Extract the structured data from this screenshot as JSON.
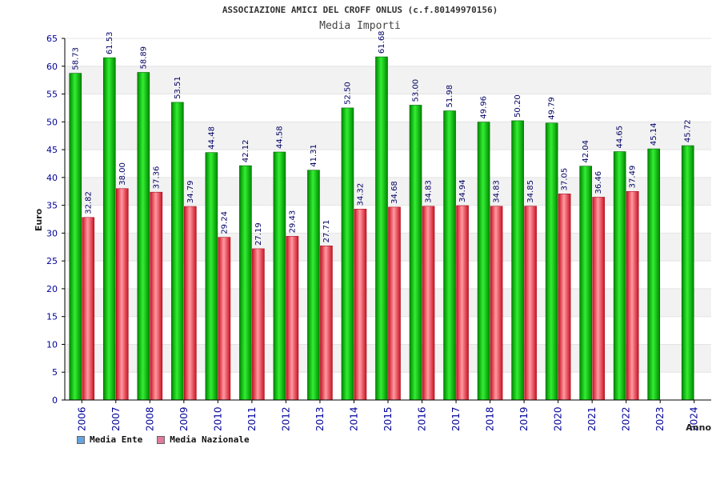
{
  "colors": {
    "ente_dark": "#008800",
    "ente_light": "#33ee33",
    "naz_dark": "#cc1122",
    "naz_light": "#ff9aa2",
    "axis_text": "#000099",
    "value_text": "#000066",
    "band": "#f2f2f2",
    "legend_ente": "#66a3e0",
    "legend_naz": "#e07aa0"
  },
  "chart_data": {
    "type": "bar",
    "title": "ASSOCIAZIONE AMICI DEL CROFF ONLUS (c.f.80149970156)",
    "subtitle": "Media Importi",
    "ylabel": "Euro",
    "xlabel": "Anno",
    "ylim": [
      0,
      65
    ],
    "yticks": [
      0,
      5,
      10,
      15,
      20,
      25,
      30,
      35,
      40,
      45,
      50,
      55,
      60,
      65
    ],
    "categories": [
      "2006",
      "2007",
      "2008",
      "2009",
      "2010",
      "2011",
      "2012",
      "2013",
      "2014",
      "2015",
      "2016",
      "2017",
      "2018",
      "2019",
      "2020",
      "2021",
      "2022",
      "2023",
      "2024"
    ],
    "series": [
      {
        "name": "Media Ente",
        "values": [
          58.73,
          61.53,
          58.89,
          53.51,
          44.48,
          42.12,
          44.58,
          41.31,
          52.5,
          61.68,
          53.0,
          51.98,
          49.96,
          50.2,
          49.79,
          42.04,
          44.65,
          45.14,
          45.72
        ],
        "labels": [
          "58.73",
          "61.53",
          "58.89",
          "53.51",
          "44.48",
          "42.12",
          "44.58",
          "41.31",
          "52.50",
          "61.68",
          "53.00",
          "51.98",
          "49.96",
          "50.20",
          "49.79",
          "42.04",
          "44.65",
          "45.14",
          "45.72"
        ]
      },
      {
        "name": "Media Nazionale",
        "values": [
          32.82,
          38.0,
          37.36,
          34.79,
          29.24,
          27.19,
          29.43,
          27.71,
          34.32,
          34.68,
          34.83,
          34.94,
          34.83,
          34.85,
          37.05,
          36.46,
          37.49,
          null,
          null
        ],
        "labels": [
          "32.82",
          "38.00",
          "37.36",
          "34.79",
          "29.24",
          "27.19",
          "29.43",
          "27.71",
          "34.32",
          "34.68",
          "34.83",
          "34.94",
          "34.83",
          "34.85",
          "37.05",
          "36.46",
          "37.49",
          null,
          null
        ]
      }
    ],
    "legend": [
      "Media Ente",
      "Media Nazionale"
    ],
    "legend_position": "bottom-left",
    "grid": true
  }
}
